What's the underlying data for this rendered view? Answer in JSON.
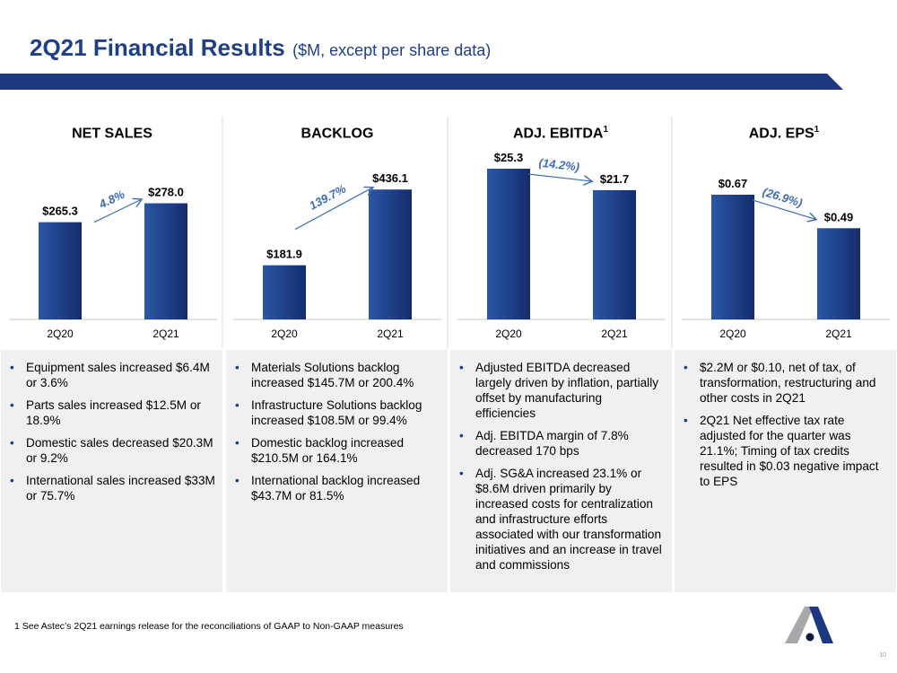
{
  "title": {
    "main": "2Q21 Financial Results",
    "sub": "($M, except per share data)"
  },
  "panels": [
    {
      "heading": "NET SALES",
      "sup": "",
      "bullets": [
        "Equipment sales increased $6.4M or 3.6%",
        "Parts sales increased $12.5M or 18.9%",
        "Domestic sales decreased $20.3M or 9.2%",
        "International sales increased $33M or 75.7%"
      ]
    },
    {
      "heading": "BACKLOG",
      "sup": "",
      "bullets": [
        "Materials Solutions backlog increased $145.7M or 200.4%",
        "Infrastructure Solutions backlog increased $108.5M or 99.4%",
        "Domestic backlog increased $210.5M or 164.1%",
        "International backlog increased $43.7M or 81.5%"
      ]
    },
    {
      "heading": "ADJ. EBITDA",
      "sup": "1",
      "bullets": [
        "Adjusted EBITDA decreased largely driven by inflation, partially offset by manufacturing efficiencies",
        "Adj. EBITDA margin of 7.8% decreased 170 bps",
        "Adj. SG&A increased 23.1% or $8.6M driven primarily by increased costs for centralization and infrastructure efforts associated with our transformation initiatives and an increase in travel and commissions"
      ]
    },
    {
      "heading": "ADJ. EPS",
      "sup": "1",
      "bullets": [
        "$2.2M or $0.10, net of tax, of transformation, restructuring and other costs in 2Q21",
        "2Q21 Net effective tax rate adjusted for the quarter was 21.1%; Timing of tax credits resulted in $0.03 negative impact to EPS"
      ]
    }
  ],
  "chart_data": [
    {
      "type": "bar",
      "title": "NET SALES",
      "categories": [
        "2Q20",
        "2Q21"
      ],
      "values": [
        265.3,
        278.0
      ],
      "labels": [
        "$265.3",
        "$278.0"
      ],
      "change": "4.8%",
      "ylim": [
        200,
        300
      ]
    },
    {
      "type": "bar",
      "title": "BACKLOG",
      "categories": [
        "2Q20",
        "2Q21"
      ],
      "values": [
        181.9,
        436.1
      ],
      "labels": [
        "$181.9",
        "$436.1"
      ],
      "change": "139.7%",
      "ylim": [
        0,
        500
      ]
    },
    {
      "type": "bar",
      "title": "ADJ. EBITDA",
      "categories": [
        "2Q20",
        "2Q21"
      ],
      "values": [
        25.3,
        21.7
      ],
      "labels": [
        "$25.3",
        "$21.7"
      ],
      "change": "(14.2%)",
      "ylim": [
        0,
        25
      ]
    },
    {
      "type": "bar",
      "title": "ADJ. EPS",
      "categories": [
        "2Q20",
        "2Q21"
      ],
      "values": [
        0.67,
        0.49
      ],
      "labels": [
        "$0.67",
        "$0.49"
      ],
      "change": "(26.9%)",
      "ylim": [
        0,
        0.8
      ]
    }
  ],
  "colors": {
    "bar_top": "#1b3a8a",
    "bar_bottom": "#2c5aa8",
    "accent": "#1e3f86",
    "arrow": "#3e6cb3"
  },
  "footnote": "1 See Astec’s 2Q21 earnings release for the reconciliations of GAAP to Non-GAAP measures",
  "page_number": "10"
}
